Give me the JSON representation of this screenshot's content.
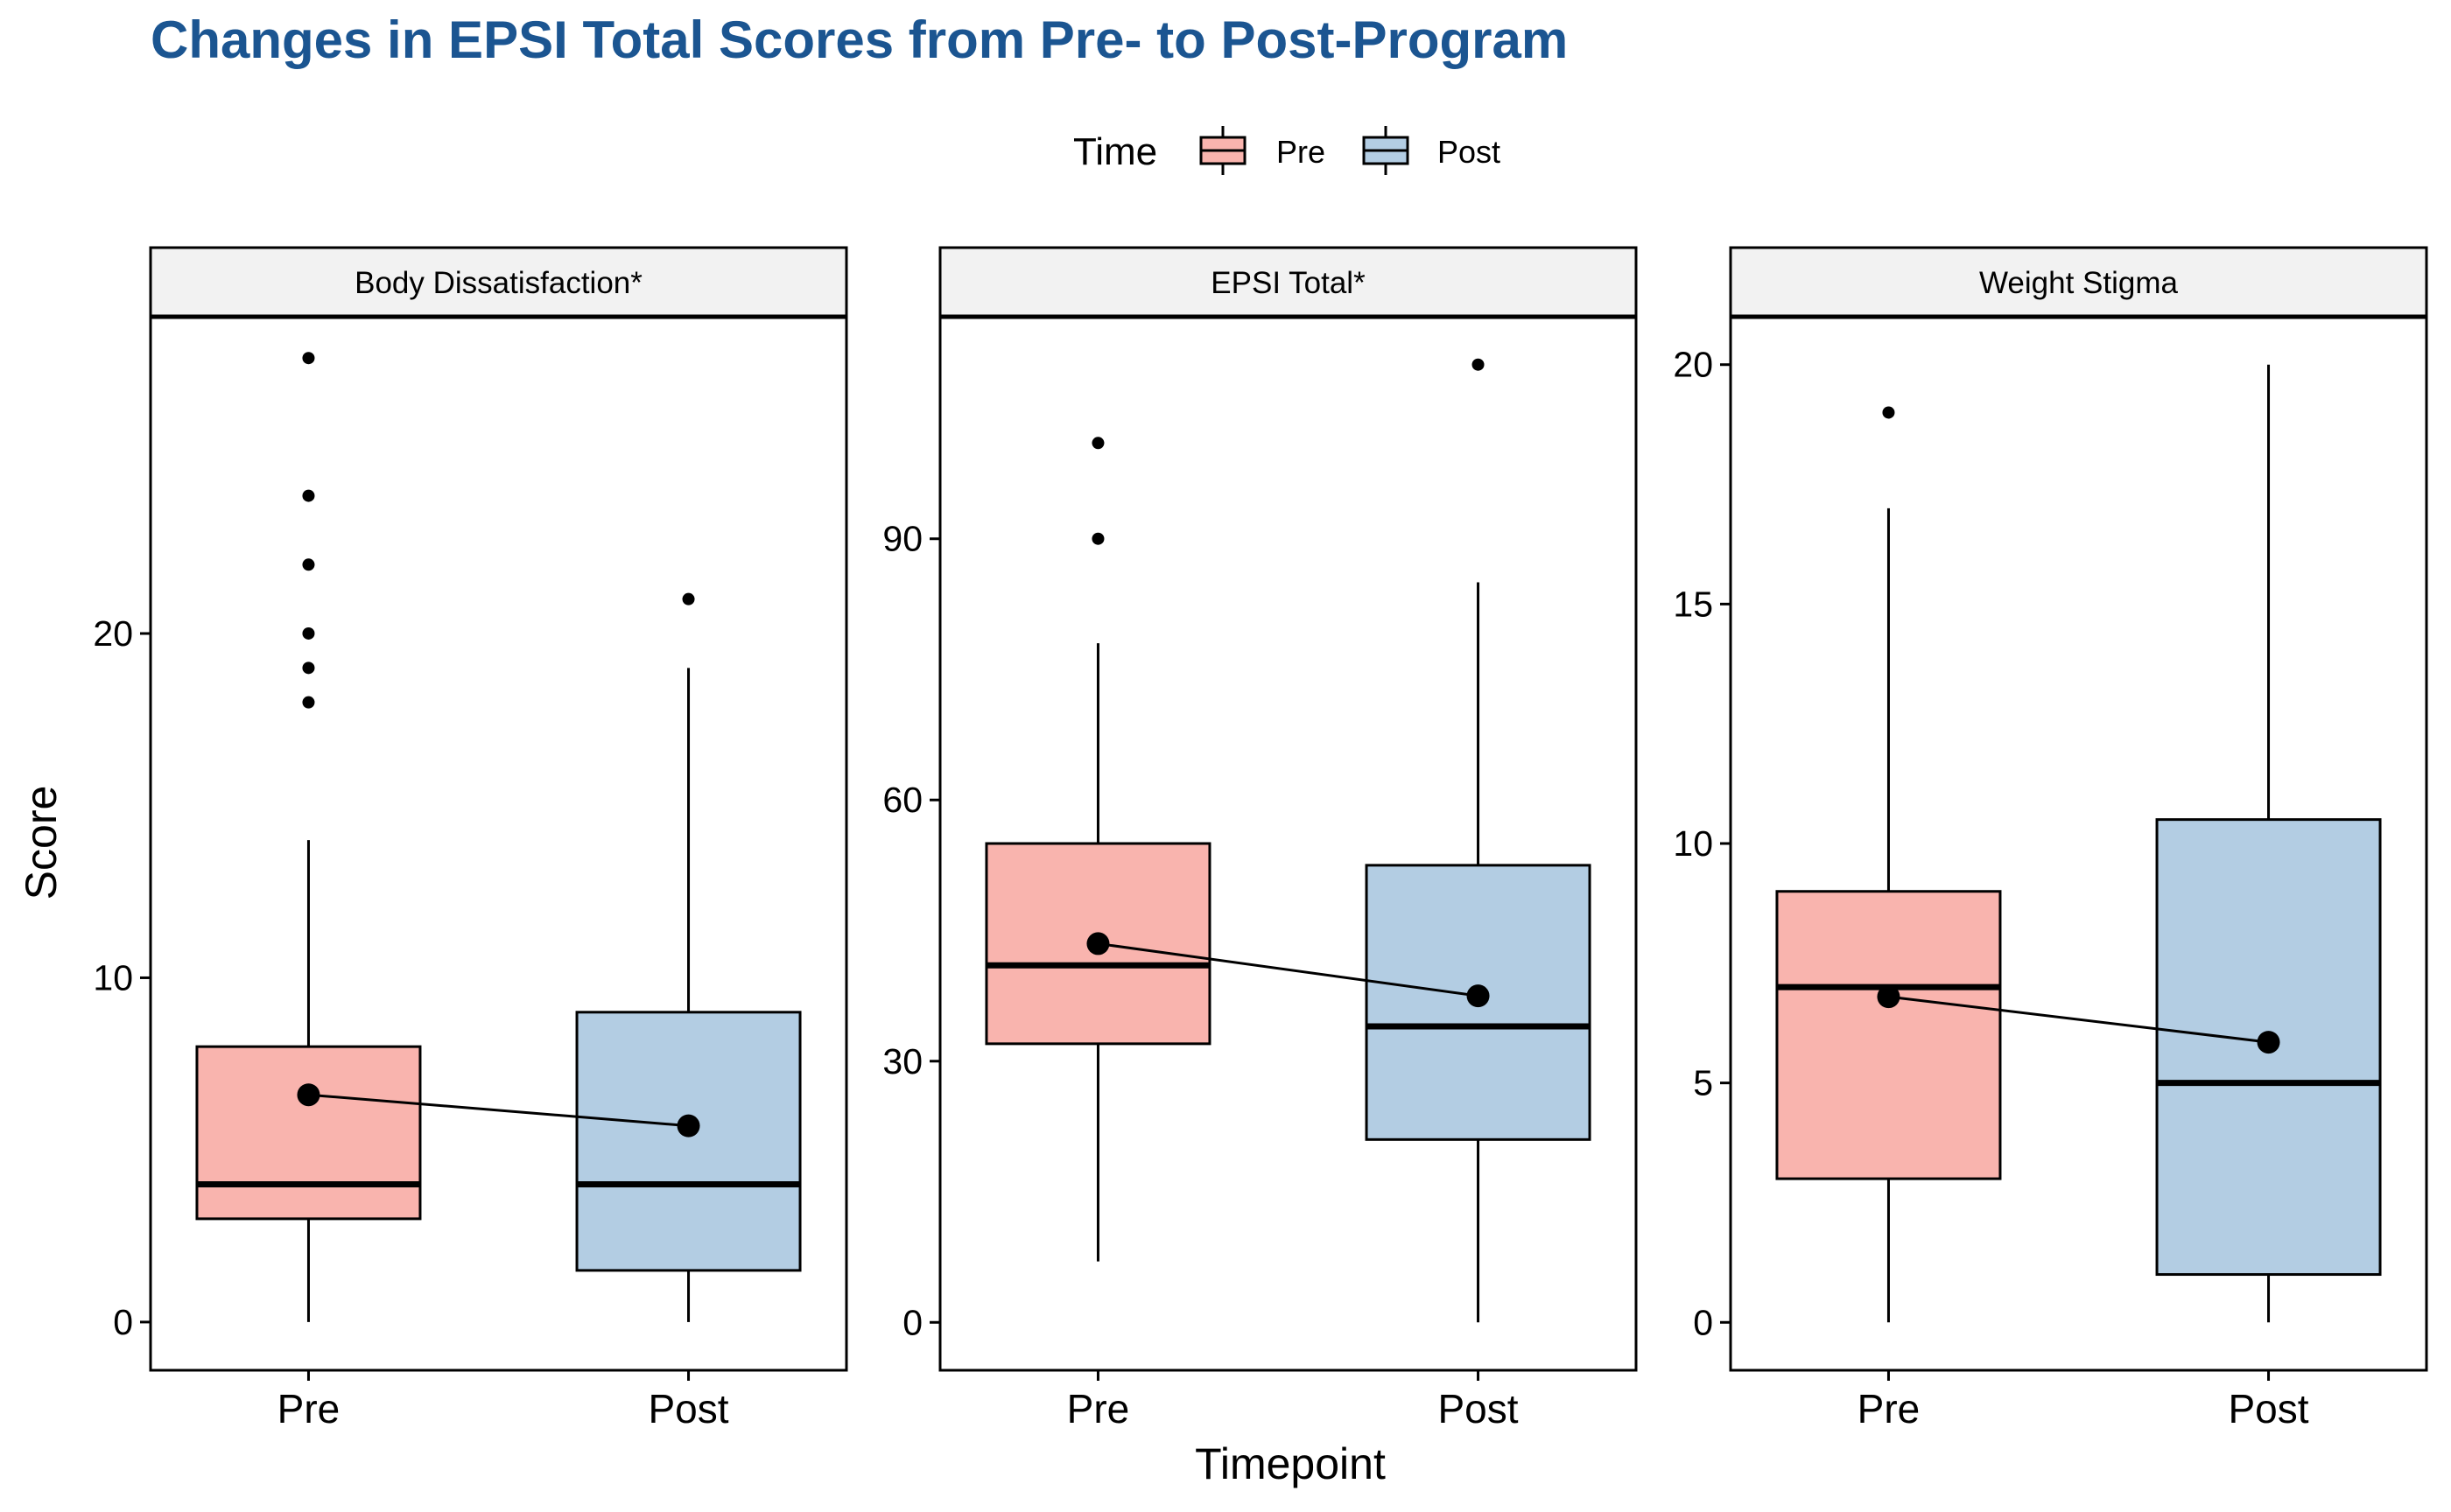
{
  "title": "Changes in EPSI Total Scores from Pre- to Post-Program",
  "legend": {
    "title": "Time",
    "position": "top",
    "items": [
      {
        "label": "Pre",
        "color": "#f9b4ae"
      },
      {
        "label": "Post",
        "color": "#b3cde3"
      }
    ]
  },
  "colors": {
    "title": "#1b5591",
    "pre": "#f9b4ae",
    "post": "#b3cde3",
    "strip": "#f2f2f2"
  },
  "chart_data": {
    "type": "box",
    "xlabel": "Timepoint",
    "ylabel": "Score",
    "categories": [
      "Pre",
      "Post"
    ],
    "grid": false,
    "facets": [
      {
        "label": "Body Dissatisfaction*",
        "ylim": [
          -1.4,
          29.2
        ],
        "yticks": [
          0,
          10,
          20
        ],
        "pre": {
          "min": 0,
          "q1": 3,
          "median": 4,
          "q3": 8,
          "max": 14,
          "mean": 6.6,
          "outliers": [
            18,
            19,
            20,
            22,
            24,
            28
          ]
        },
        "post": {
          "min": 0,
          "q1": 1.5,
          "median": 4,
          "q3": 9,
          "max": 19,
          "mean": 5.7,
          "outliers": [
            21
          ]
        }
      },
      {
        "label": "EPSI Total*",
        "ylim": [
          -5.5,
          115.5
        ],
        "yticks": [
          0,
          30,
          60,
          90
        ],
        "pre": {
          "min": 7,
          "q1": 32,
          "median": 41,
          "q3": 55,
          "max": 78,
          "mean": 43.5,
          "outliers": [
            90,
            101
          ]
        },
        "post": {
          "min": 0,
          "q1": 21,
          "median": 34,
          "q3": 52.5,
          "max": 85,
          "mean": 37.5,
          "outliers": [
            110
          ]
        }
      },
      {
        "label": "Weight Stigma",
        "ylim": [
          -1,
          21
        ],
        "yticks": [
          0,
          5,
          10,
          15,
          20
        ],
        "pre": {
          "min": 0,
          "q1": 3,
          "median": 7,
          "q3": 9,
          "max": 17,
          "mean": 6.8,
          "outliers": [
            19
          ]
        },
        "post": {
          "min": 0,
          "q1": 1,
          "median": 5,
          "q3": 10.5,
          "max": 20,
          "mean": 5.85,
          "outliers": []
        }
      }
    ]
  }
}
